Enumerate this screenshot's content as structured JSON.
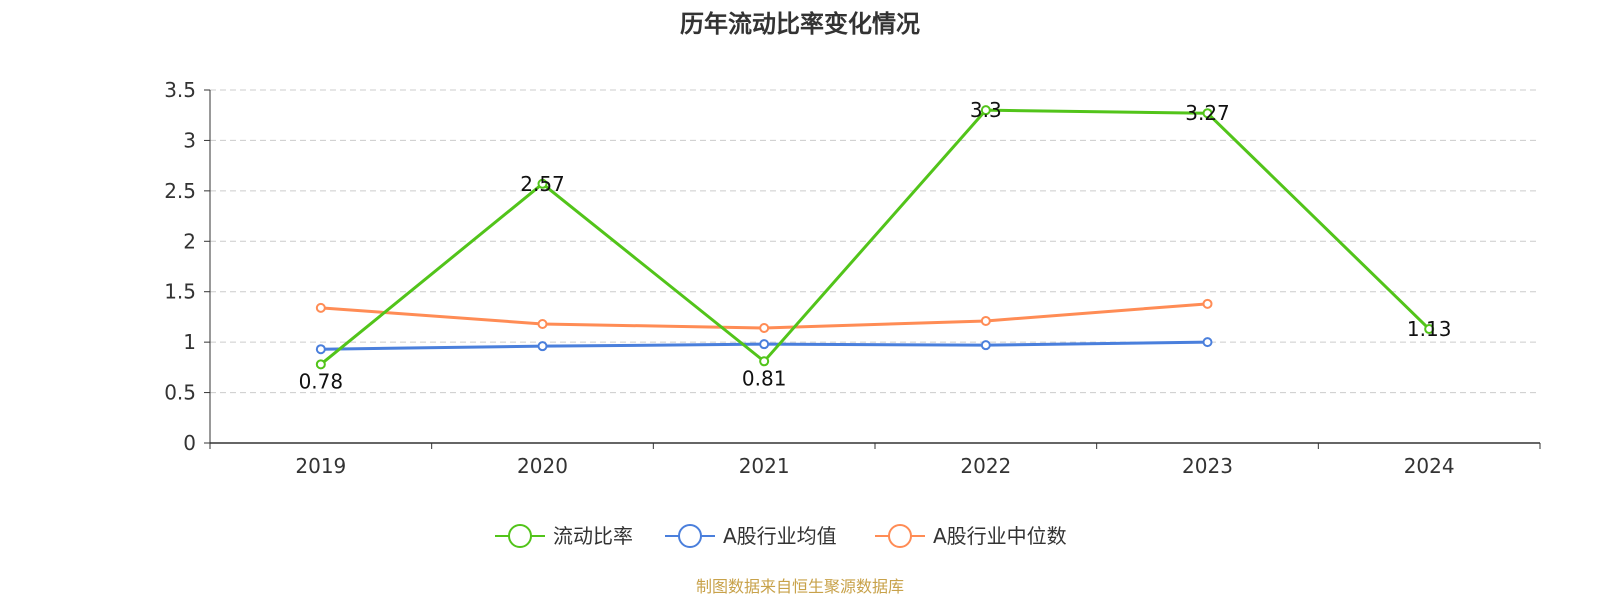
{
  "chart_data": {
    "type": "line",
    "title": "历年流动比率变化情况",
    "categories": [
      "2019",
      "2020",
      "2021",
      "2022",
      "2023",
      "2024"
    ],
    "ylim": [
      0,
      3.5
    ],
    "y_ticks": [
      "0",
      "0.5",
      "1",
      "1.5",
      "2",
      "2.5",
      "3",
      "3.5"
    ],
    "grid": true,
    "legend_position": "bottom",
    "series": [
      {
        "name": "流动比率",
        "color": "#52c41a",
        "values": [
          0.78,
          2.57,
          0.81,
          3.3,
          3.27,
          1.13
        ],
        "labels": [
          "0.78",
          "2.57",
          "0.81",
          "3.3",
          "3.27",
          "1.13"
        ]
      },
      {
        "name": "A股行业均值",
        "color": "#4a7fdc",
        "values": [
          0.93,
          0.96,
          0.98,
          0.97,
          1.0,
          null
        ]
      },
      {
        "name": "A股行业中位数",
        "color": "#ff8c55",
        "values": [
          1.34,
          1.18,
          1.14,
          1.21,
          1.38,
          null
        ]
      }
    ]
  },
  "source_text": "制图数据来自恒生聚源数据库"
}
